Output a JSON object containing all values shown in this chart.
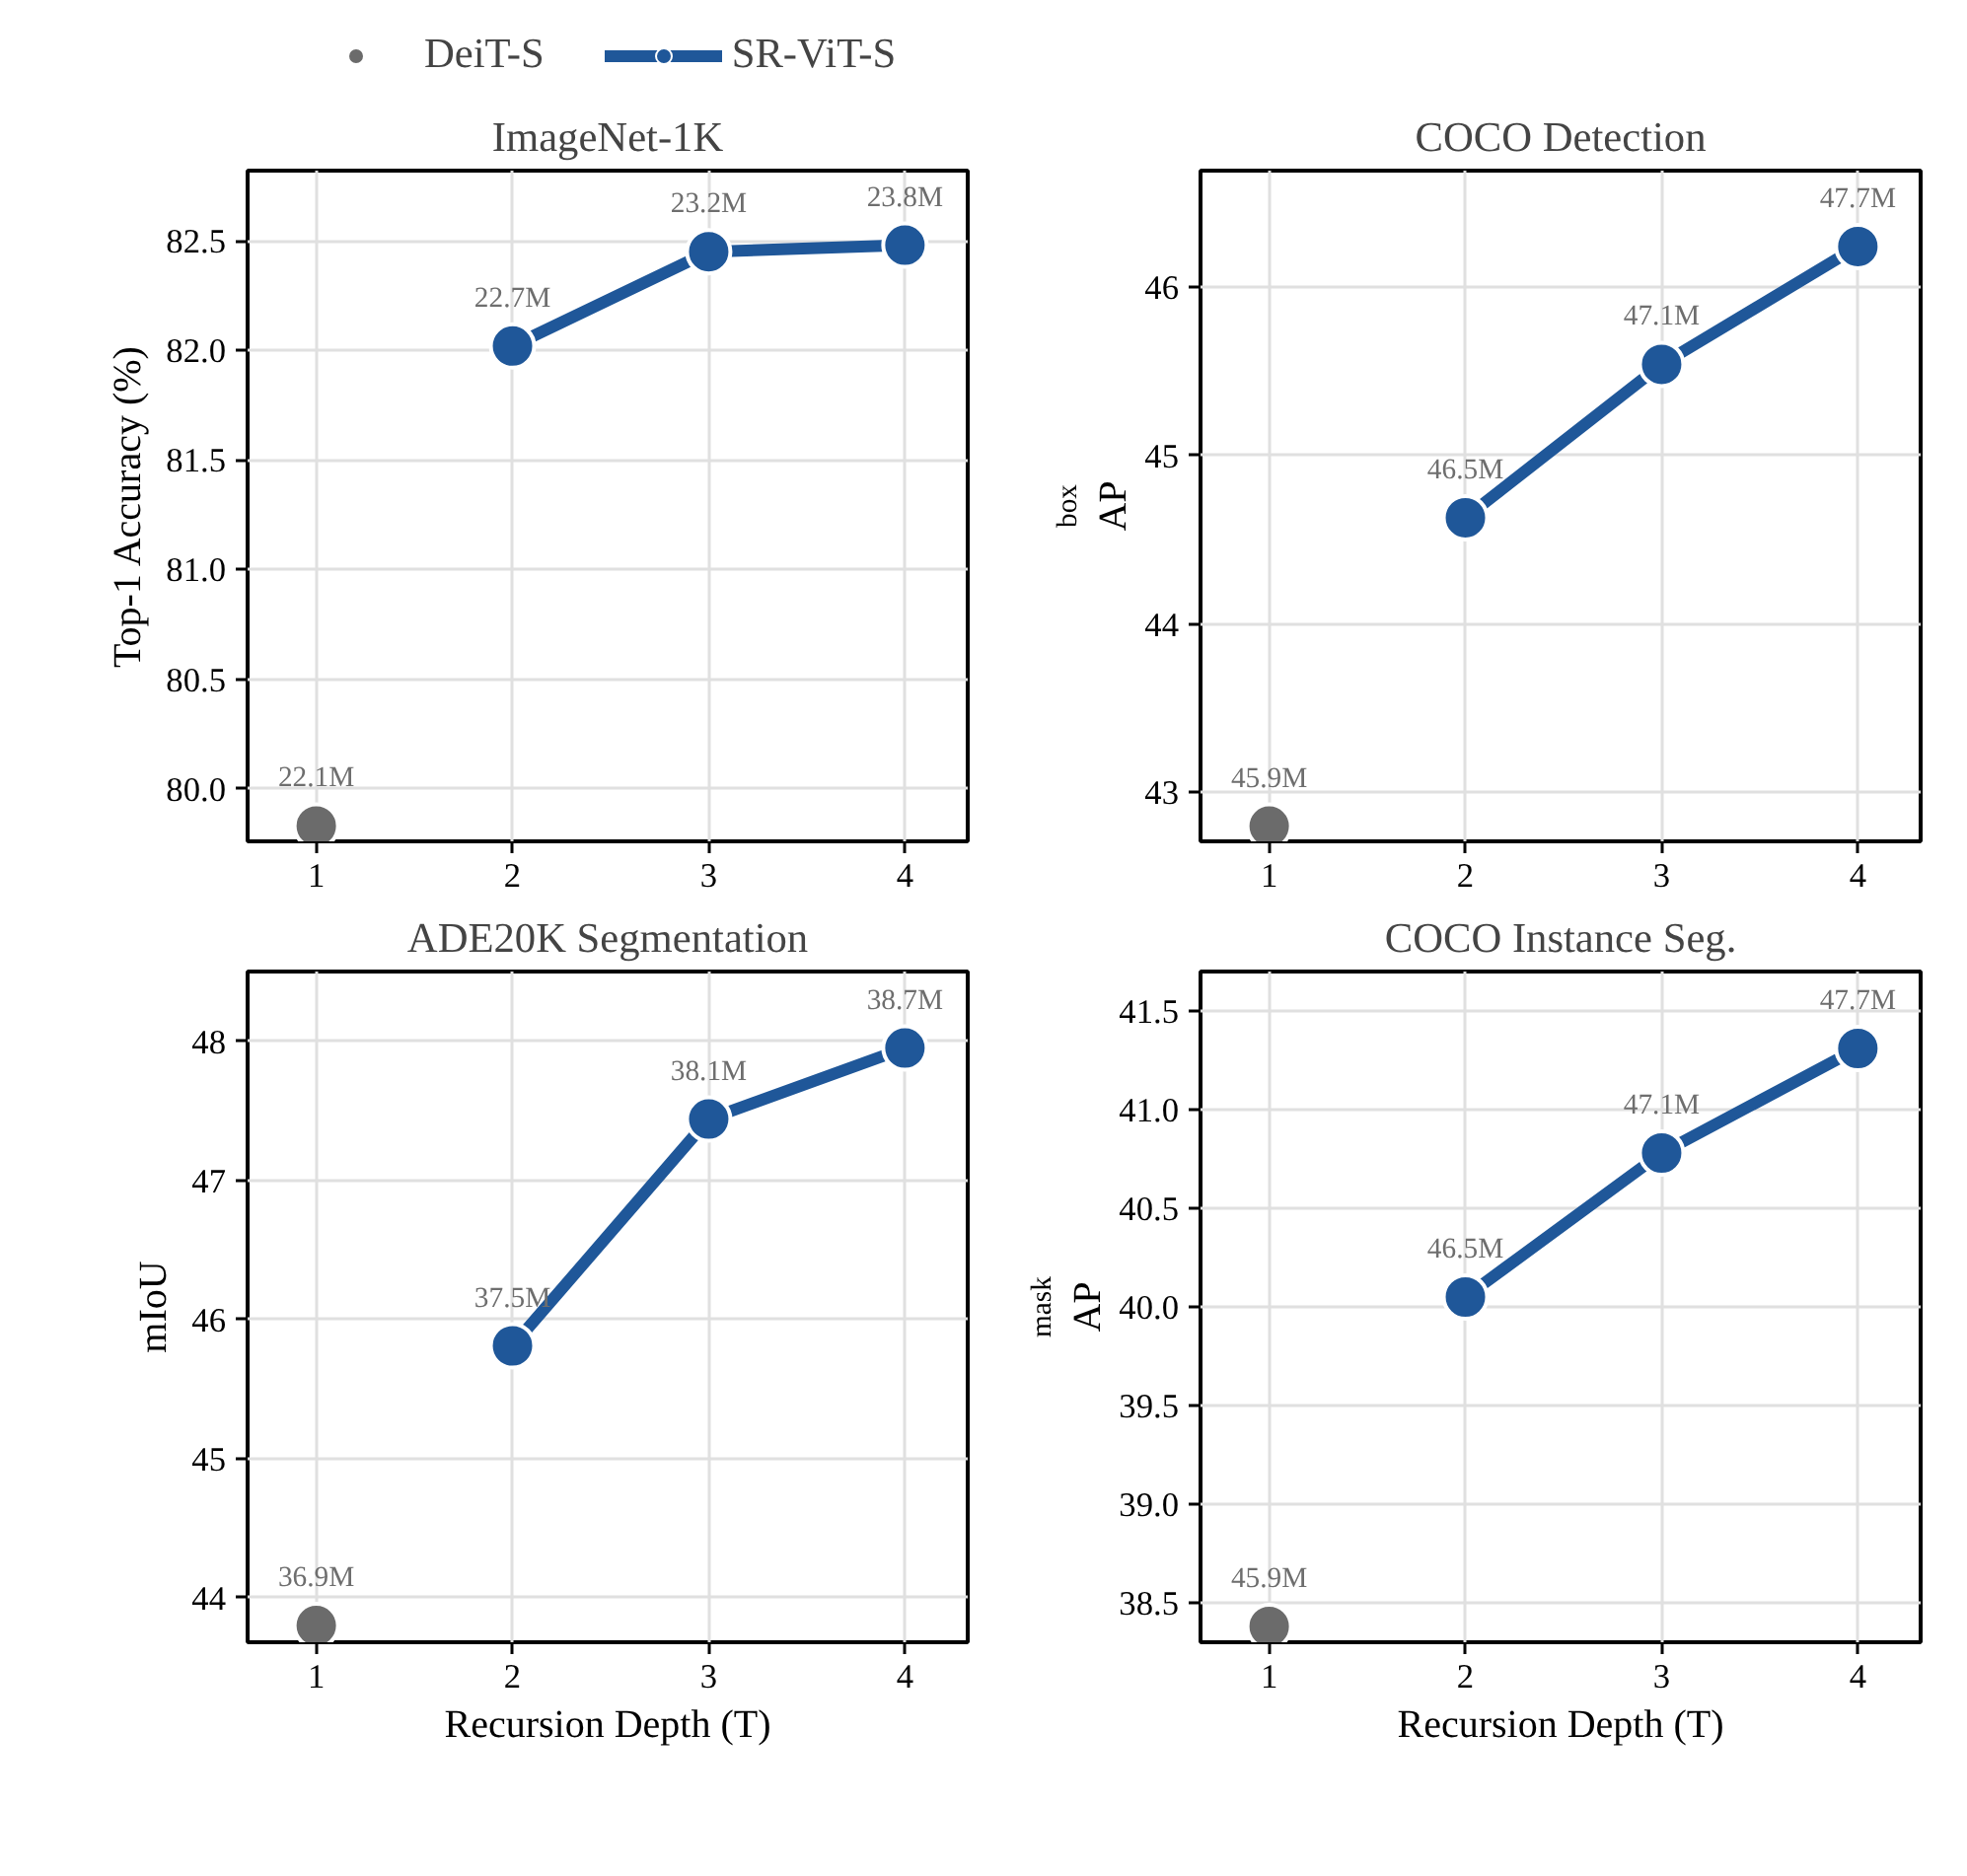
{
  "chart_data": [
    {
      "type": "line",
      "title": "ImageNet-1K",
      "ylabel": "Top-1 Accuracy (%)",
      "xlim": [
        0.65,
        4.32
      ],
      "xticks": [
        1,
        2,
        3,
        4
      ],
      "ylim": [
        79.76,
        82.82
      ],
      "yticks": [
        {
          "value": 80,
          "label": "80.0"
        },
        80.5,
        {
          "value": 81,
          "label": "81.0"
        },
        81.5,
        {
          "value": 82,
          "label": "82.0"
        },
        82.5
      ],
      "grid": true,
      "legend": "top",
      "marker": "circle",
      "series": [
        {
          "name": "DeiT-S",
          "type": "scatter",
          "color": "#6b6b6b",
          "x": [
            1
          ],
          "values": [
            79.83
          ]
        },
        {
          "name": "SR-ViT-S",
          "color": "#1f5799",
          "x": [
            2,
            3,
            4
          ],
          "values": [
            82.02,
            82.45,
            82.48
          ]
        }
      ],
      "annotations": [
        {
          "text": "22.1M",
          "x": 1,
          "y": 79.83
        },
        {
          "text": "22.7M",
          "x": 2,
          "y": 82.02
        },
        {
          "text": "23.2M",
          "x": 3,
          "y": 82.45
        },
        {
          "text": "23.8M",
          "x": 4,
          "y": 82.48
        }
      ]
    },
    {
      "type": "line",
      "title": "COCO Detection",
      "ylabel": "AP$^{box}$",
      "xlim": [
        0.65,
        4.32
      ],
      "xticks": [
        1,
        2,
        3,
        4
      ],
      "ylim": [
        42.71,
        46.69
      ],
      "yticks": [
        43,
        44,
        45,
        46
      ],
      "grid": true,
      "marker": "circle",
      "series": [
        {
          "type": "scatter",
          "color": "#6b6b6b",
          "x": [
            1
          ],
          "values": [
            42.8
          ]
        },
        {
          "color": "#1f5799",
          "x": [
            2,
            3,
            4
          ],
          "values": [
            44.63,
            45.54,
            46.24
          ]
        }
      ],
      "annotations": [
        {
          "text": "45.9M",
          "x": 1,
          "y": 42.8
        },
        {
          "text": "46.5M",
          "x": 2,
          "y": 44.63
        },
        {
          "text": "47.1M",
          "x": 3,
          "y": 45.54
        },
        {
          "text": "47.7M",
          "x": 4,
          "y": 46.24
        }
      ]
    },
    {
      "type": "line",
      "title": "ADE20K Segmentation",
      "xlabel": "Recursion Depth (T)",
      "ylabel": "mIoU",
      "xlim": [
        0.65,
        4.32
      ],
      "xticks": [
        1,
        2,
        3,
        4
      ],
      "ylim": [
        43.68,
        48.5
      ],
      "yticks": [
        44,
        45,
        46,
        47,
        48
      ],
      "grid": true,
      "marker": "circle",
      "series": [
        {
          "type": "scatter",
          "color": "#6b6b6b",
          "x": [
            1
          ],
          "values": [
            43.8
          ]
        },
        {
          "color": "#1f5799",
          "x": [
            2,
            3,
            4
          ],
          "values": [
            45.81,
            47.44,
            47.95
          ]
        }
      ],
      "annotations": [
        {
          "text": "36.9M",
          "x": 1,
          "y": 43.8
        },
        {
          "text": "37.5M",
          "x": 2,
          "y": 45.81
        },
        {
          "text": "38.1M",
          "x": 3,
          "y": 47.44
        },
        {
          "text": "38.7M",
          "x": 4,
          "y": 47.95
        }
      ]
    },
    {
      "type": "line",
      "title": "COCO Instance Seg.",
      "xlabel": "Recursion Depth (T)",
      "ylabel": "AP$^{mask}$",
      "xlim": [
        0.65,
        4.32
      ],
      "xticks": [
        1,
        2,
        3,
        4
      ],
      "ylim": [
        38.3,
        41.7
      ],
      "yticks": [
        38.5,
        {
          "value": 39,
          "label": "39.0"
        },
        39.5,
        {
          "value": 40,
          "label": "40.0"
        },
        40.5,
        {
          "value": 41,
          "label": "41.0"
        },
        41.5
      ],
      "grid": true,
      "marker": "circle",
      "series": [
        {
          "type": "scatter",
          "color": "#6b6b6b",
          "x": [
            1
          ],
          "values": [
            38.38
          ]
        },
        {
          "color": "#1f5799",
          "x": [
            2,
            3,
            4
          ],
          "values": [
            40.05,
            40.78,
            41.31
          ]
        }
      ],
      "annotations": [
        {
          "text": "45.9M",
          "x": 1,
          "y": 38.38
        },
        {
          "text": "46.5M",
          "x": 2,
          "y": 40.05
        },
        {
          "text": "47.1M",
          "x": 3,
          "y": 40.78
        },
        {
          "text": "47.7M",
          "x": 4,
          "y": 41.31
        }
      ]
    }
  ]
}
